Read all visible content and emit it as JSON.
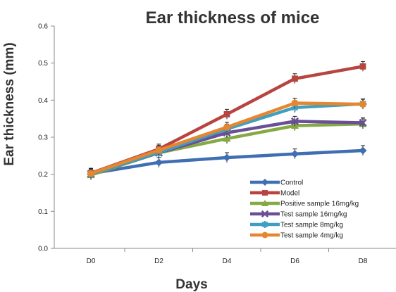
{
  "chart_data": {
    "type": "line",
    "title": "Ear thickness of mice",
    "xlabel": "Days",
    "ylabel": "Ear thickness (mm)",
    "categories": [
      "D0",
      "D2",
      "D4",
      "D6",
      "D8"
    ],
    "ylim": [
      0,
      0.6
    ],
    "yticks": [
      "0.0",
      "0.1",
      "0.2",
      "0.3",
      "0.4",
      "0.5",
      "0.6"
    ],
    "grid": false,
    "legend_position": "bottom-right",
    "series": [
      {
        "name": "Control",
        "color": "#3f6eb3",
        "marker": "diamond",
        "values": [
          0.202,
          0.232,
          0.245,
          0.255,
          0.264
        ]
      },
      {
        "name": "Model",
        "color": "#b84440",
        "marker": "square",
        "values": [
          0.203,
          0.268,
          0.362,
          0.458,
          0.491
        ]
      },
      {
        "name": "Positive sample 16mg/kg",
        "color": "#85a945",
        "marker": "triangle",
        "values": [
          0.198,
          0.258,
          0.296,
          0.331,
          0.336
        ]
      },
      {
        "name": "Test sample 16mg/kg",
        "color": "#6a4f96",
        "marker": "x",
        "values": [
          0.201,
          0.258,
          0.312,
          0.343,
          0.339
        ]
      },
      {
        "name": "Test sample 8mg/kg",
        "color": "#3f9fc0",
        "marker": "star",
        "values": [
          0.201,
          0.259,
          0.322,
          0.38,
          0.39
        ]
      },
      {
        "name": "Test sample 4mg/kg",
        "color": "#e6862f",
        "marker": "circle",
        "values": [
          0.202,
          0.265,
          0.327,
          0.392,
          0.389
        ]
      }
    ]
  }
}
